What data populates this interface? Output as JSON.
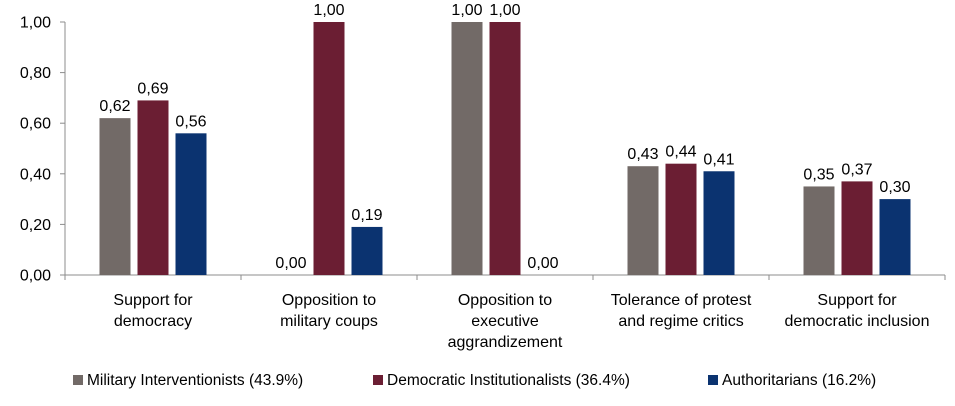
{
  "chart_data": {
    "type": "bar",
    "title": "",
    "xlabel": "",
    "ylabel": "",
    "ylim": [
      0,
      1
    ],
    "yticks": [
      "0,00",
      "0,20",
      "0,40",
      "0,60",
      "0,80",
      "1,00"
    ],
    "ytick_values": [
      0,
      0.2,
      0.4,
      0.6,
      0.8,
      1.0
    ],
    "grid": false,
    "legend_position": "bottom",
    "categories": [
      [
        "Support for",
        "democracy"
      ],
      [
        "Opposition to",
        "military coups"
      ],
      [
        "Opposition to",
        "executive",
        "aggrandizement"
      ],
      [
        "Tolerance of protest",
        "and regime critics"
      ],
      [
        "Support for",
        "democratic inclusion"
      ]
    ],
    "series": [
      {
        "name": "Military Interventionists (43.9%)",
        "color": "#726a67",
        "values": [
          0.62,
          0.0,
          1.0,
          0.43,
          0.35
        ],
        "labels": [
          "0,62",
          "0,00",
          "1,00",
          "0,43",
          "0,35"
        ]
      },
      {
        "name": "Democratic Institutionalists (36.4%)",
        "color": "#6b1e33",
        "values": [
          0.69,
          1.0,
          1.0,
          0.44,
          0.37
        ],
        "labels": [
          "0,69",
          "1,00",
          "1,00",
          "0,44",
          "0,37"
        ]
      },
      {
        "name": "Authoritarians (16.2%)",
        "color": "#0b3370",
        "values": [
          0.56,
          0.19,
          0.0,
          0.41,
          0.3
        ],
        "labels": [
          "0,56",
          "0,19",
          "0,00",
          "0,41",
          "0,30"
        ]
      }
    ]
  }
}
